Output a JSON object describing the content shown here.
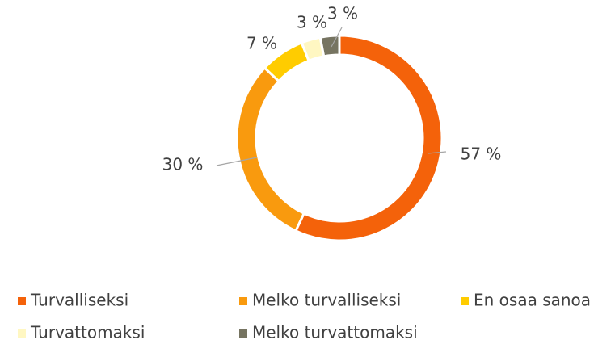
{
  "chart_data": {
    "type": "donut",
    "categories": [
      "Turvalliseksi",
      "Melko turvalliseksi",
      "En osaa sanoa",
      "Turvattomaksi",
      "Melko turvattomaksi"
    ],
    "values": [
      57,
      30,
      7,
      3,
      3
    ],
    "value_labels": [
      "57 %",
      "30 %",
      "7 %",
      "3 %",
      "3 %"
    ],
    "colors": [
      "#f4620a",
      "#f99a0e",
      "#ffcc00",
      "#fff7c2",
      "#767461"
    ],
    "legend": "bottom"
  }
}
